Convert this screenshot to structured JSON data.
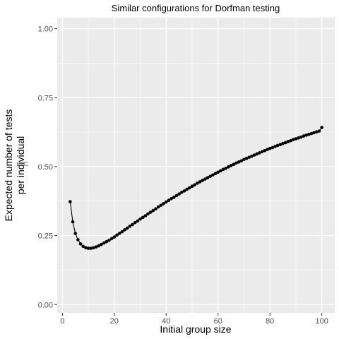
{
  "chart_data": {
    "type": "line",
    "title": "Similar configurations for Dorfman testing",
    "xlabel": "Initial group size",
    "ylabel_lines": [
      "Expected number of tests",
      "per individual"
    ],
    "ylabel_note": "⊓",
    "xlim": [
      -2,
      105
    ],
    "ylim": [
      -0.03,
      1.04
    ],
    "x_ticks": [
      0,
      20,
      40,
      60,
      80,
      100
    ],
    "x_tick_labels": [
      "0",
      "20",
      "40",
      "60",
      "80",
      "100"
    ],
    "y_ticks": [
      0,
      0.25,
      0.5,
      0.75,
      1
    ],
    "y_tick_labels": [
      "0.00",
      "0.25",
      "0.50",
      "0.75",
      "1.00"
    ],
    "grid": true,
    "background": "#ebebeb",
    "grid_color": "#ffffff",
    "series_color": "#000000",
    "series": [
      {
        "markers": "points",
        "x": [
          3,
          4,
          5,
          6,
          7,
          8,
          9,
          10,
          11,
          12,
          13,
          14,
          15,
          16,
          17,
          18,
          19,
          20,
          21,
          22,
          23,
          24,
          25,
          26,
          27,
          28,
          29,
          30,
          31,
          32,
          33,
          34,
          35,
          36,
          37,
          38,
          39,
          40,
          41,
          42,
          43,
          44,
          45,
          46,
          47,
          48,
          49,
          50,
          51,
          52,
          53,
          54,
          55,
          56,
          57,
          58,
          59,
          60,
          61,
          62,
          63,
          64,
          65,
          66,
          67,
          68,
          69,
          70,
          71,
          72,
          73,
          74,
          75,
          76,
          77,
          78,
          79,
          80,
          81,
          82,
          83,
          84,
          85,
          86,
          87,
          88,
          89,
          90,
          91,
          92,
          93,
          94,
          95,
          96,
          97,
          98,
          99,
          100
        ],
        "y": [
          0.373,
          0.3,
          0.258,
          0.235,
          0.22,
          0.211,
          0.206,
          0.204,
          0.204,
          0.206,
          0.209,
          0.213,
          0.218,
          0.223,
          0.228,
          0.233,
          0.239,
          0.245,
          0.252,
          0.258,
          0.264,
          0.271,
          0.277,
          0.284,
          0.29,
          0.297,
          0.303,
          0.31,
          0.316,
          0.322,
          0.329,
          0.335,
          0.341,
          0.347,
          0.354,
          0.36,
          0.366,
          0.372,
          0.378,
          0.384,
          0.389,
          0.395,
          0.401,
          0.407,
          0.412,
          0.418,
          0.423,
          0.429,
          0.434,
          0.44,
          0.445,
          0.45,
          0.455,
          0.46,
          0.465,
          0.47,
          0.475,
          0.48,
          0.485,
          0.49,
          0.494,
          0.499,
          0.504,
          0.508,
          0.513,
          0.517,
          0.521,
          0.526,
          0.53,
          0.534,
          0.538,
          0.542,
          0.546,
          0.55,
          0.554,
          0.558,
          0.562,
          0.566,
          0.569,
          0.573,
          0.577,
          0.58,
          0.584,
          0.587,
          0.591,
          0.594,
          0.598,
          0.601,
          0.604,
          0.607,
          0.611,
          0.614,
          0.617,
          0.62,
          0.623,
          0.626,
          0.629,
          0.642
        ]
      }
    ]
  }
}
